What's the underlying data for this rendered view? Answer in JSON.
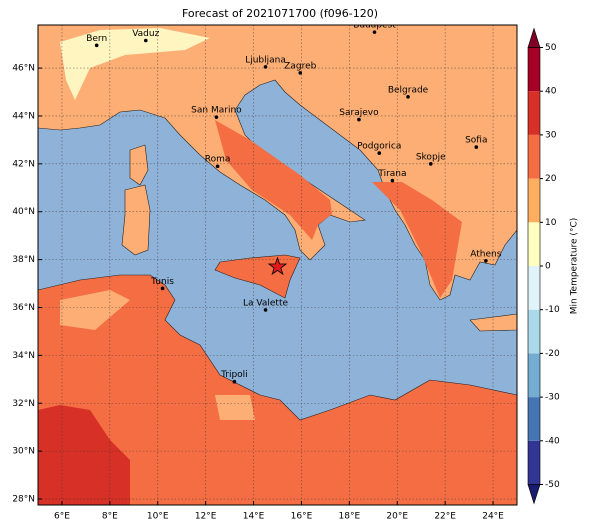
{
  "map": {
    "title": "Forecast of 2021071700 (f096-120)",
    "lon_range": [
      5,
      25
    ],
    "lat_range": [
      27.75,
      47.8
    ],
    "lon_ticks": [
      {
        "value": 6,
        "label": "6°E"
      },
      {
        "value": 8,
        "label": "8°E"
      },
      {
        "value": 10,
        "label": "10°E"
      },
      {
        "value": 12,
        "label": "12°E"
      },
      {
        "value": 14,
        "label": "14°E"
      },
      {
        "value": 16,
        "label": "16°E"
      },
      {
        "value": 18,
        "label": "18°E"
      },
      {
        "value": 20,
        "label": "20°E"
      },
      {
        "value": 22,
        "label": "22°E"
      },
      {
        "value": 24,
        "label": "24°E"
      }
    ],
    "lat_ticks": [
      {
        "value": 28,
        "label": "28°N"
      },
      {
        "value": 30,
        "label": "30°N"
      },
      {
        "value": 32,
        "label": "32°N"
      },
      {
        "value": 34,
        "label": "34°N"
      },
      {
        "value": 36,
        "label": "36°N"
      },
      {
        "value": 38,
        "label": "38°N"
      },
      {
        "value": 40,
        "label": "40°N"
      },
      {
        "value": 42,
        "label": "42°N"
      },
      {
        "value": 44,
        "label": "44°N"
      },
      {
        "value": 46,
        "label": "46°N"
      }
    ],
    "grid": true,
    "cities": [
      {
        "name": "Bern",
        "lon": 7.45,
        "lat": 46.95
      },
      {
        "name": "Vaduz",
        "lon": 9.5,
        "lat": 47.15
      },
      {
        "name": "Budapest",
        "lon": 19.05,
        "lat": 47.5
      },
      {
        "name": "Ljubljana",
        "lon": 14.5,
        "lat": 46.05
      },
      {
        "name": "Zagreb",
        "lon": 15.95,
        "lat": 45.8
      },
      {
        "name": "Belgrade",
        "lon": 20.45,
        "lat": 44.8
      },
      {
        "name": "Sarajevo",
        "lon": 18.4,
        "lat": 43.85
      },
      {
        "name": "San Marino",
        "lon": 12.45,
        "lat": 43.95
      },
      {
        "name": "Sofia",
        "lon": 23.3,
        "lat": 42.7
      },
      {
        "name": "Roma",
        "lon": 12.5,
        "lat": 41.9
      },
      {
        "name": "Podgorica",
        "lon": 19.25,
        "lat": 42.45
      },
      {
        "name": "Skopje",
        "lon": 21.4,
        "lat": 42.0
      },
      {
        "name": "Tirana",
        "lon": 19.8,
        "lat": 41.3
      },
      {
        "name": "Athens",
        "lon": 23.7,
        "lat": 37.95
      },
      {
        "name": "Tunis",
        "lon": 10.2,
        "lat": 36.8
      },
      {
        "name": "La Valette",
        "lon": 14.5,
        "lat": 35.9
      },
      {
        "name": "Tripoli",
        "lon": 13.2,
        "lat": 32.9
      }
    ],
    "marker": {
      "lon": 15.0,
      "lat": 37.7,
      "color": "#e31a1c"
    },
    "colorbar": {
      "label": "Min Temperature (°C)",
      "ticks": [
        -50,
        -40,
        -30,
        -20,
        -10,
        0,
        10,
        20,
        30,
        40,
        50
      ],
      "colors": [
        "#313695",
        "#4575b4",
        "#74add1",
        "#abd9e9",
        "#e0f3f8",
        "#ffffbf",
        "#fdae61",
        "#f46d43",
        "#d73027",
        "#a50026"
      ],
      "under_color": "#1a1a6e",
      "over_color": "#7f0026"
    }
  }
}
